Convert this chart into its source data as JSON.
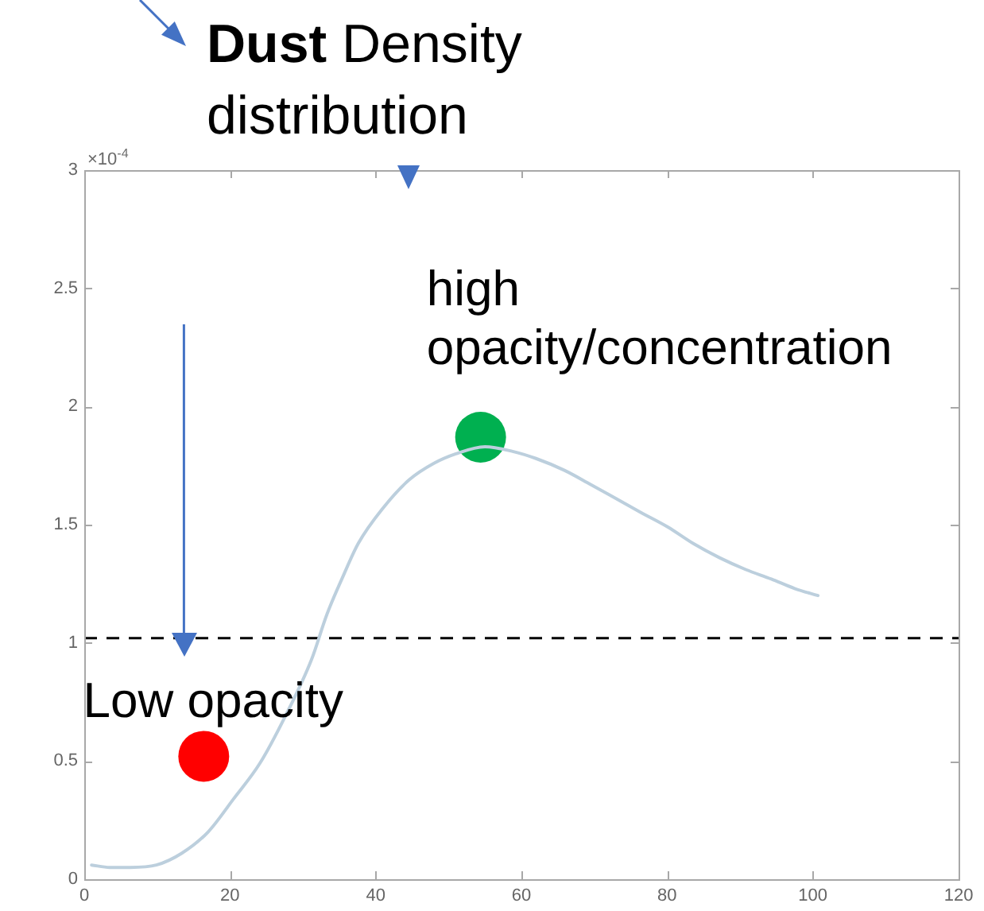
{
  "chart_data": {
    "type": "line",
    "title": "Dust Density distribution",
    "annotations": [
      "×10$^{-4}$",
      {
        "text": "Low opacity",
        "x": 16.4,
        "y": 0.52
      },
      {
        "text": "high opacity/concentration",
        "x": 54.4,
        "y": 1.87
      }
    ],
    "xlim": [
      0,
      120
    ],
    "xticks": [
      0,
      20,
      40,
      60,
      80,
      100,
      120
    ],
    "ylim": [
      0,
      3
    ],
    "yticks": [
      0,
      0.5,
      1,
      1.5,
      2,
      2.5,
      3
    ],
    "ref_lines": [
      {
        "axis": "y",
        "value": 1.02,
        "color": "#000000",
        "line_style": "dashed"
      }
    ],
    "series": [
      {
        "color": "#bccfdd",
        "x": [
          1,
          3.5,
          6.3,
          9.9,
          13.4,
          17,
          20.5,
          24.1,
          27.6,
          31.2,
          33.3,
          35.5,
          37.6,
          41,
          44.6,
          48,
          51,
          55,
          58.8,
          62,
          65.9,
          69.5,
          73,
          76.5,
          80.1,
          83.6,
          87.2,
          90.8,
          94.3,
          97.5,
          100.7
        ],
        "values": [
          0.06,
          0.05,
          0.05,
          0.06,
          0.11,
          0.2,
          0.34,
          0.49,
          0.69,
          0.93,
          1.12,
          1.28,
          1.42,
          1.57,
          1.69,
          1.76,
          1.8,
          1.83,
          1.81,
          1.78,
          1.73,
          1.67,
          1.61,
          1.55,
          1.49,
          1.42,
          1.36,
          1.31,
          1.27,
          1.23,
          1.2
        ]
      },
      {
        "type": "scatter",
        "marker": "circle",
        "x": [
          16.4,
          54.4
        ],
        "values": [
          0.52,
          1.87
        ],
        "colors": [
          "#ff0000",
          "#00b050"
        ]
      }
    ]
  }
}
